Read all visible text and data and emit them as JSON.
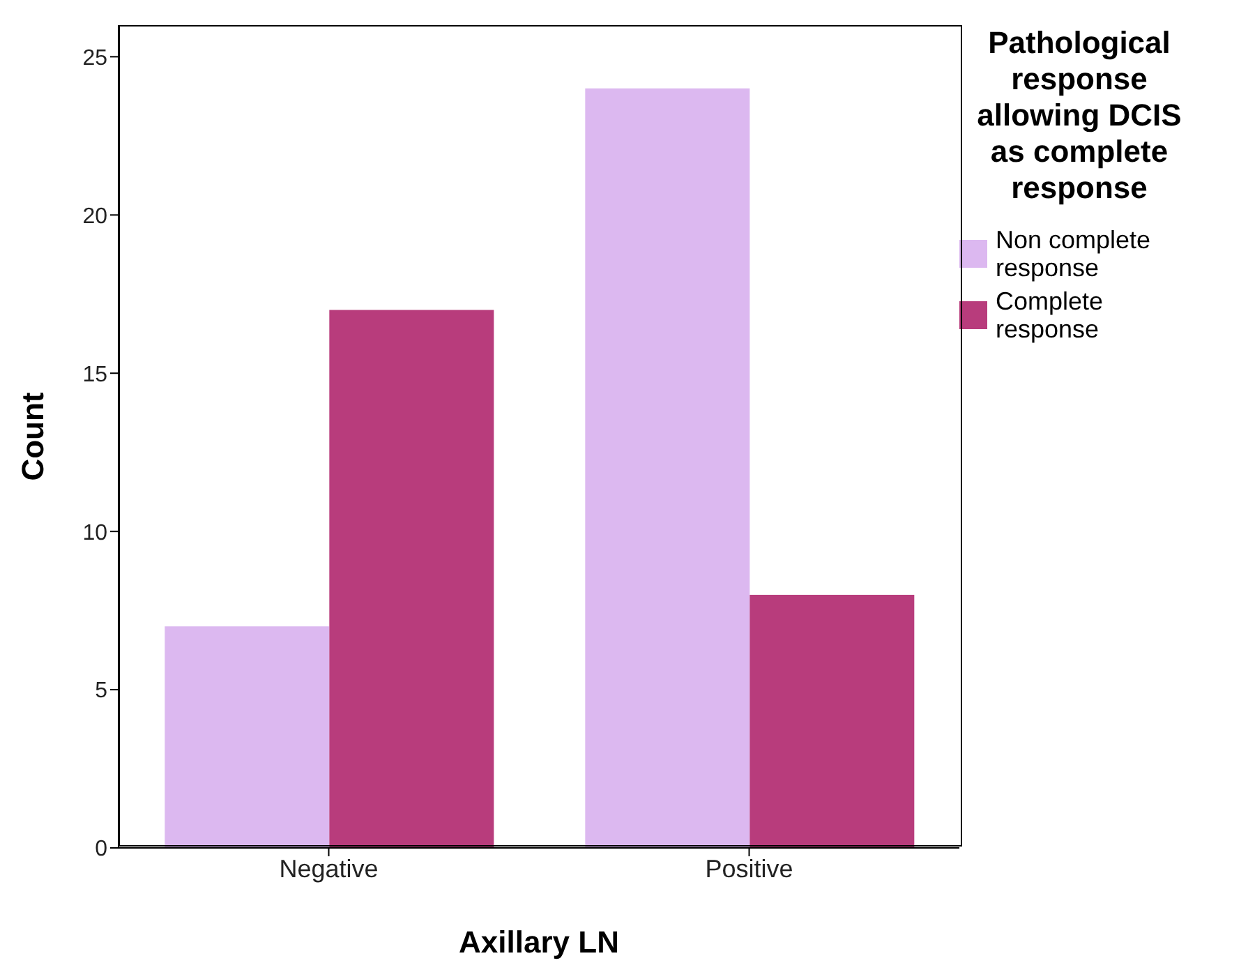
{
  "chart_data": {
    "type": "bar",
    "xlabel": "Axillary LN",
    "ylabel": "Count",
    "legend_title": "Pathological response allowing DCIS as complete response",
    "categories": [
      "Negative",
      "Positive"
    ],
    "series": [
      {
        "name": "Non complete response",
        "color": "#dcb8f0",
        "values": [
          7,
          24
        ]
      },
      {
        "name": "Complete response",
        "color": "#b83c7c",
        "values": [
          17,
          8
        ]
      }
    ],
    "ylim": [
      0,
      26
    ],
    "yticks": [
      0,
      5,
      10,
      15,
      20,
      25
    ],
    "legend": "right"
  }
}
